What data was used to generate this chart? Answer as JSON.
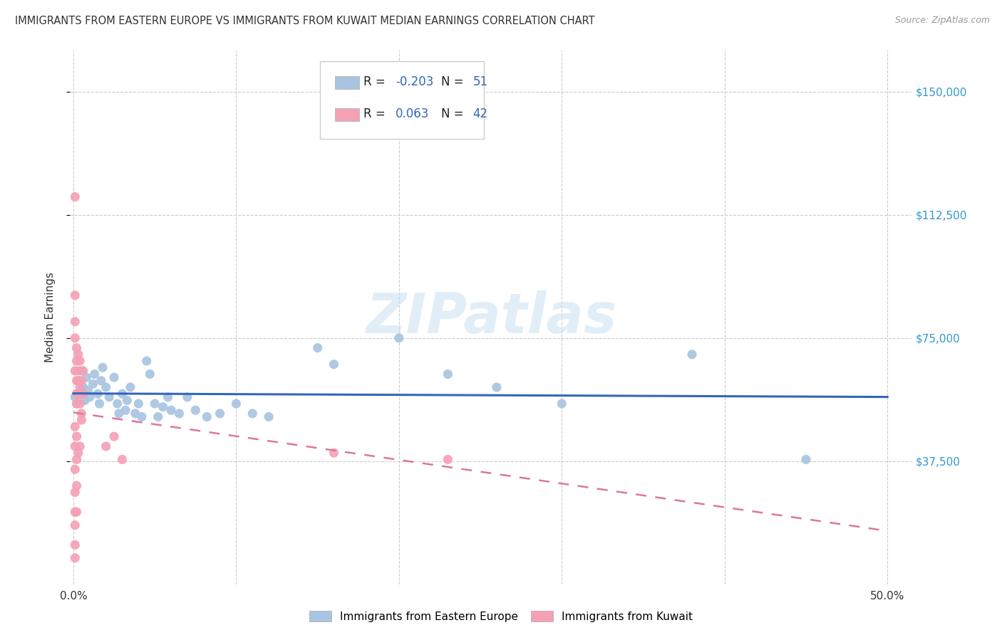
{
  "title": "IMMIGRANTS FROM EASTERN EUROPE VS IMMIGRANTS FROM KUWAIT MEDIAN EARNINGS CORRELATION CHART",
  "source": "Source: ZipAtlas.com",
  "ylabel": "Median Earnings",
  "ytick_labels": [
    "$37,500",
    "$75,000",
    "$112,500",
    "$150,000"
  ],
  "ytick_values": [
    37500,
    75000,
    112500,
    150000
  ],
  "ymin": 0,
  "ymax": 162500,
  "xmin": -0.002,
  "xmax": 0.515,
  "r_blue": -0.203,
  "n_blue": 51,
  "r_pink": 0.063,
  "n_pink": 42,
  "legend_label_blue": "Immigrants from Eastern Europe",
  "legend_label_pink": "Immigrants from Kuwait",
  "watermark": "ZIPatlas",
  "blue_color": "#a8c4e0",
  "pink_color": "#f4a0b5",
  "blue_line_color": "#3366bb",
  "pink_line_color": "#dd7799",
  "background_color": "#ffffff",
  "grid_color": "#cccccc",
  "blue_scatter": [
    [
      0.001,
      57000
    ],
    [
      0.002,
      55000
    ],
    [
      0.003,
      62000
    ],
    [
      0.004,
      58000
    ],
    [
      0.005,
      65000
    ],
    [
      0.006,
      60000
    ],
    [
      0.007,
      56000
    ],
    [
      0.008,
      63000
    ],
    [
      0.009,
      59000
    ],
    [
      0.01,
      57000
    ],
    [
      0.012,
      61000
    ],
    [
      0.013,
      64000
    ],
    [
      0.015,
      58000
    ],
    [
      0.016,
      55000
    ],
    [
      0.017,
      62000
    ],
    [
      0.018,
      66000
    ],
    [
      0.02,
      60000
    ],
    [
      0.022,
      57000
    ],
    [
      0.025,
      63000
    ],
    [
      0.027,
      55000
    ],
    [
      0.028,
      52000
    ],
    [
      0.03,
      58000
    ],
    [
      0.032,
      53000
    ],
    [
      0.033,
      56000
    ],
    [
      0.035,
      60000
    ],
    [
      0.038,
      52000
    ],
    [
      0.04,
      55000
    ],
    [
      0.042,
      51000
    ],
    [
      0.045,
      68000
    ],
    [
      0.047,
      64000
    ],
    [
      0.05,
      55000
    ],
    [
      0.052,
      51000
    ],
    [
      0.055,
      54000
    ],
    [
      0.058,
      57000
    ],
    [
      0.06,
      53000
    ],
    [
      0.065,
      52000
    ],
    [
      0.07,
      57000
    ],
    [
      0.075,
      53000
    ],
    [
      0.082,
      51000
    ],
    [
      0.09,
      52000
    ],
    [
      0.1,
      55000
    ],
    [
      0.11,
      52000
    ],
    [
      0.12,
      51000
    ],
    [
      0.15,
      72000
    ],
    [
      0.16,
      67000
    ],
    [
      0.2,
      75000
    ],
    [
      0.23,
      64000
    ],
    [
      0.26,
      60000
    ],
    [
      0.3,
      55000
    ],
    [
      0.38,
      70000
    ],
    [
      0.45,
      38000
    ]
  ],
  "pink_scatter": [
    [
      0.001,
      118000
    ],
    [
      0.001,
      88000
    ],
    [
      0.001,
      80000
    ],
    [
      0.001,
      75000
    ],
    [
      0.001,
      65000
    ],
    [
      0.002,
      72000
    ],
    [
      0.002,
      68000
    ],
    [
      0.002,
      62000
    ],
    [
      0.002,
      58000
    ],
    [
      0.002,
      55000
    ],
    [
      0.003,
      70000
    ],
    [
      0.003,
      65000
    ],
    [
      0.003,
      62000
    ],
    [
      0.003,
      58000
    ],
    [
      0.004,
      68000
    ],
    [
      0.004,
      60000
    ],
    [
      0.004,
      55000
    ],
    [
      0.005,
      62000
    ],
    [
      0.005,
      58000
    ],
    [
      0.005,
      52000
    ],
    [
      0.006,
      65000
    ],
    [
      0.006,
      58000
    ],
    [
      0.001,
      48000
    ],
    [
      0.001,
      42000
    ],
    [
      0.001,
      35000
    ],
    [
      0.001,
      28000
    ],
    [
      0.001,
      22000
    ],
    [
      0.001,
      18000
    ],
    [
      0.001,
      12000
    ],
    [
      0.001,
      8000
    ],
    [
      0.002,
      45000
    ],
    [
      0.002,
      38000
    ],
    [
      0.002,
      30000
    ],
    [
      0.002,
      22000
    ],
    [
      0.003,
      40000
    ],
    [
      0.004,
      42000
    ],
    [
      0.02,
      42000
    ],
    [
      0.025,
      45000
    ],
    [
      0.03,
      38000
    ],
    [
      0.16,
      40000
    ],
    [
      0.23,
      38000
    ],
    [
      0.005,
      50000
    ]
  ]
}
